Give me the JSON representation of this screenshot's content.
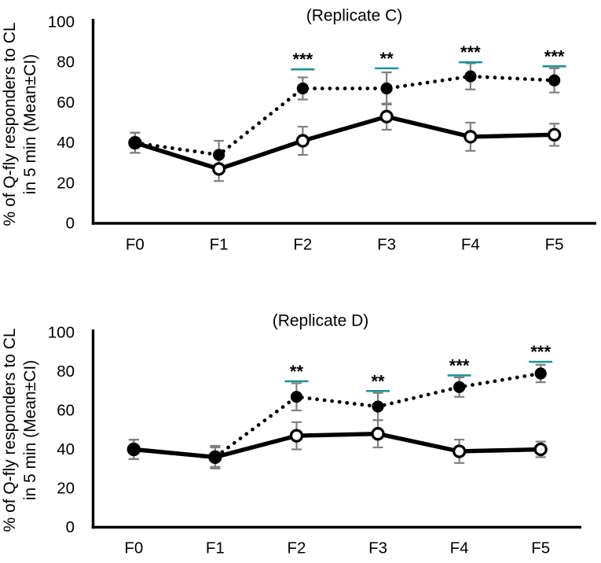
{
  "colors": {
    "series_black": "#000000",
    "open_marker_fill": "#ffffff",
    "error_bar_gray": "#7f7f7f",
    "significance_teal": "#1b939b",
    "text_black": "#000000"
  },
  "chart_data": [
    {
      "type": "line",
      "title": "(Replicate C)",
      "categories": [
        "F0",
        "F1",
        "F2",
        "F3",
        "F4",
        "F5"
      ],
      "ylabel_lines": [
        "% of Q-fly responders to CL",
        "in 5 min (Mean±CI)"
      ],
      "ylim": [
        0,
        100
      ],
      "yticks": [
        0,
        20,
        40,
        60,
        80,
        100
      ],
      "grid": false,
      "legend": "none",
      "series": [
        {
          "name": "filled-dotted-series",
          "marker": "filled",
          "line": "dotted",
          "values": [
            40,
            34,
            67,
            67,
            73,
            71
          ],
          "ci": [
            5,
            7,
            5.5,
            8,
            6.5,
            6
          ]
        },
        {
          "name": "open-solid-series",
          "marker": "open",
          "line": "solid",
          "values": [
            40,
            27,
            41,
            53,
            43,
            44
          ],
          "ci": [
            5,
            6,
            7,
            6.5,
            7,
            5.5
          ]
        }
      ],
      "significance": [
        {
          "category": "F2",
          "stars": "***",
          "line_value": 76.5
        },
        {
          "category": "F3",
          "stars": "**",
          "line_value": 77
        },
        {
          "category": "F4",
          "stars": "***",
          "line_value": 80
        },
        {
          "category": "F5",
          "stars": "***",
          "line_value": 78
        }
      ]
    },
    {
      "type": "line",
      "title": "(Replicate D)",
      "categories": [
        "F0",
        "F1",
        "F2",
        "F3",
        "F4",
        "F5"
      ],
      "ylabel_lines": [
        "% of Q-fly responders to CL",
        "in 5 min (Mean±CI)"
      ],
      "ylim": [
        0,
        100
      ],
      "yticks": [
        0,
        20,
        40,
        60,
        80,
        100
      ],
      "grid": false,
      "legend": "none",
      "series": [
        {
          "name": "filled-dotted-series",
          "marker": "filled",
          "line": "dotted",
          "values": [
            40,
            36,
            67,
            62,
            72,
            79
          ],
          "ci": [
            5,
            5.8,
            7,
            7,
            5,
            4.5
          ]
        },
        {
          "name": "open-solid-series",
          "marker": "open",
          "line": "solid",
          "values": [
            40,
            36,
            47,
            48,
            39,
            40
          ],
          "ci": [
            5,
            5,
            7,
            7,
            6,
            4
          ]
        }
      ],
      "significance": [
        {
          "category": "F2",
          "stars": "**",
          "line_value": 75
        },
        {
          "category": "F3",
          "stars": "**",
          "line_value": 70
        },
        {
          "category": "F4",
          "stars": "***",
          "line_value": 78
        },
        {
          "category": "F5",
          "stars": "***",
          "line_value": 85
        }
      ]
    }
  ]
}
